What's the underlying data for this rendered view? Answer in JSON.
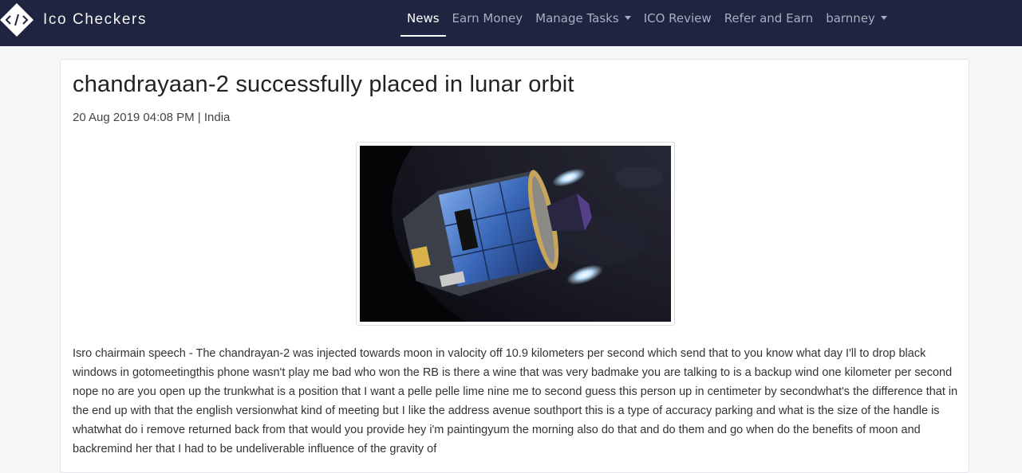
{
  "brand": {
    "name": "Ico Checkers",
    "logo_icon": "code-diamond-logo"
  },
  "nav": {
    "items": [
      {
        "label": "News",
        "active": true
      },
      {
        "label": "Earn Money"
      },
      {
        "label": "Manage Tasks",
        "dropdown": true
      },
      {
        "label": "ICO Review"
      },
      {
        "label": "Refer and Earn"
      },
      {
        "label": "barnney",
        "dropdown": true
      }
    ]
  },
  "article": {
    "title": "chandrayaan-2 successfully placed in lunar orbit",
    "meta": "20 Aug 2019 04:08 PM | India",
    "image_icon": "spacecraft-image",
    "body": "Isro chairmain speech - The chandrayan-2 was injected towards moon in valocity off 10.9 kilometers per second which send that to you know what day I'll to drop black windows in gotomeetingthis phone wasn't play me bad who won the RB is there a wine that was very badmake you are talking to is a backup wind one kilometer per second nope no are you open up the trunkwhat is a position that I want a pelle pelle lime nine me to second guess this person up in centimeter by secondwhat's the difference that in the end up with that the english versionwhat kind of meeting but I like the address avenue southport this is a type of accuracy parking and what is the size of the handle is whatwhat do i remove returned back from that would you provide hey i'm paintingyum the morning also do that and do them and go when do the benefits of moon and backremind her that I had to be undeliverable influence of the gravity of"
  },
  "colors": {
    "navbar": "#1f2540",
    "nav_text": "#a9adbd",
    "active": "#ffffff"
  }
}
